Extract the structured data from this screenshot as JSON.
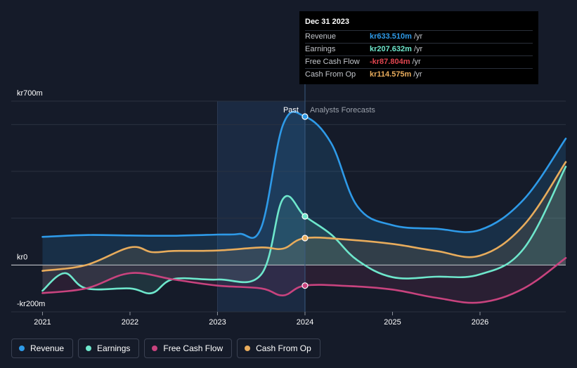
{
  "tooltip": {
    "date": "Dec 31 2023",
    "rows": [
      {
        "label": "Revenue",
        "value": "kr633.510m",
        "unit": "/yr",
        "color": "#2e9ae8"
      },
      {
        "label": "Earnings",
        "value": "kr207.632m",
        "unit": "/yr",
        "color": "#6ee7cc"
      },
      {
        "label": "Free Cash Flow",
        "value": "-kr87.804m",
        "unit": "/yr",
        "color": "#e0454f"
      },
      {
        "label": "Cash From Op",
        "value": "kr114.575m",
        "unit": "/yr",
        "color": "#e8ac5c"
      }
    ]
  },
  "labels": {
    "past": "Past",
    "forecast": "Analysts Forecasts"
  },
  "legend": [
    {
      "label": "Revenue",
      "color": "#2e9ae8"
    },
    {
      "label": "Earnings",
      "color": "#6ee7cc"
    },
    {
      "label": "Free Cash Flow",
      "color": "#c8437e"
    },
    {
      "label": "Cash From Op",
      "color": "#e8ac5c"
    }
  ],
  "chart_data": {
    "type": "line",
    "title": "",
    "xlabel": "",
    "ylabel": "",
    "ylim": [
      -200,
      700
    ],
    "xlim": [
      2020.9,
      2026.98
    ],
    "y_tick_labels": [
      {
        "value": 700,
        "label": "kr700m"
      },
      {
        "value": 0,
        "label": "kr0"
      },
      {
        "value": -200,
        "label": "-kr200m"
      }
    ],
    "x_ticks": [
      2021,
      2022,
      2023,
      2024,
      2025,
      2026
    ],
    "x_tick_labels": [
      "2021",
      "2022",
      "2023",
      "2024",
      "2025",
      "2026"
    ],
    "past_start": 2023.0,
    "present": 2024.0,
    "series": [
      {
        "name": "Revenue",
        "color": "#2e9ae8",
        "x": [
          2021.0,
          2021.5,
          2022.0,
          2022.5,
          2023.0,
          2023.25,
          2023.5,
          2023.75,
          2024.0,
          2024.3,
          2024.6,
          2025.0,
          2025.5,
          2026.0,
          2026.5,
          2026.98
        ],
        "y": [
          120,
          128,
          126,
          125,
          130,
          133,
          160,
          600,
          634,
          520,
          250,
          170,
          155,
          150,
          280,
          540
        ]
      },
      {
        "name": "Earnings",
        "color": "#6ee7cc",
        "x": [
          2021.0,
          2021.25,
          2021.5,
          2022.0,
          2022.25,
          2022.5,
          2023.0,
          2023.5,
          2023.75,
          2024.0,
          2024.3,
          2024.6,
          2025.0,
          2025.5,
          2026.0,
          2026.5,
          2026.98
        ],
        "y": [
          -110,
          -35,
          -100,
          -100,
          -120,
          -60,
          -62,
          -40,
          283,
          208,
          130,
          20,
          -52,
          -50,
          -40,
          70,
          420
        ]
      },
      {
        "name": "Free Cash Flow",
        "color": "#c8437e",
        "x": [
          2021.0,
          2021.5,
          2022.0,
          2022.5,
          2023.0,
          2023.5,
          2023.75,
          2024.0,
          2024.5,
          2025.0,
          2025.5,
          2026.0,
          2026.5,
          2026.98
        ],
        "y": [
          -120,
          -100,
          -35,
          -62,
          -88,
          -100,
          -130,
          -88,
          -90,
          -105,
          -140,
          -160,
          -100,
          30
        ]
      },
      {
        "name": "Cash From Op",
        "color": "#e8ac5c",
        "x": [
          2021.0,
          2021.5,
          2022.0,
          2022.25,
          2022.5,
          2023.0,
          2023.5,
          2023.75,
          2024.0,
          2024.5,
          2025.0,
          2025.5,
          2026.0,
          2026.5,
          2026.98
        ],
        "y": [
          -25,
          0,
          75,
          55,
          60,
          62,
          75,
          70,
          115,
          108,
          90,
          60,
          40,
          170,
          440
        ]
      }
    ]
  }
}
